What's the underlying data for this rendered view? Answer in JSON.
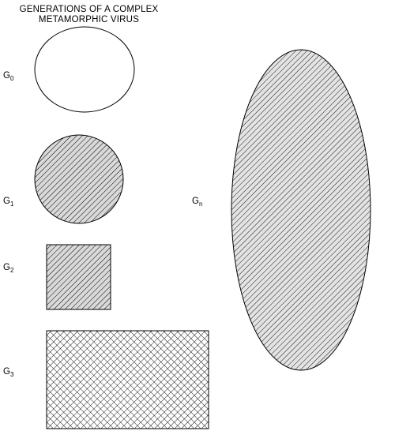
{
  "title": [
    "GENERATIONS OF A  COMPLEX",
    "METAMORPHIC VIRUS"
  ],
  "generations": [
    {
      "base": "G",
      "sub": "0",
      "shape": "ellipse",
      "fill": "none"
    },
    {
      "base": "G",
      "sub": "1",
      "shape": "circle",
      "fill": "diagonal-hatch"
    },
    {
      "base": "G",
      "sub": "2",
      "shape": "square",
      "fill": "diagonal-hatch"
    },
    {
      "base": "G",
      "sub": "3",
      "shape": "rectangle",
      "fill": "cross-hatch"
    },
    {
      "base": "G",
      "sub": "n",
      "shape": "ellipse",
      "fill": "diagonal-hatch"
    }
  ],
  "colors": {
    "stroke": "#000000",
    "fill_bg": "#ffffff",
    "hatch": "#000000"
  }
}
